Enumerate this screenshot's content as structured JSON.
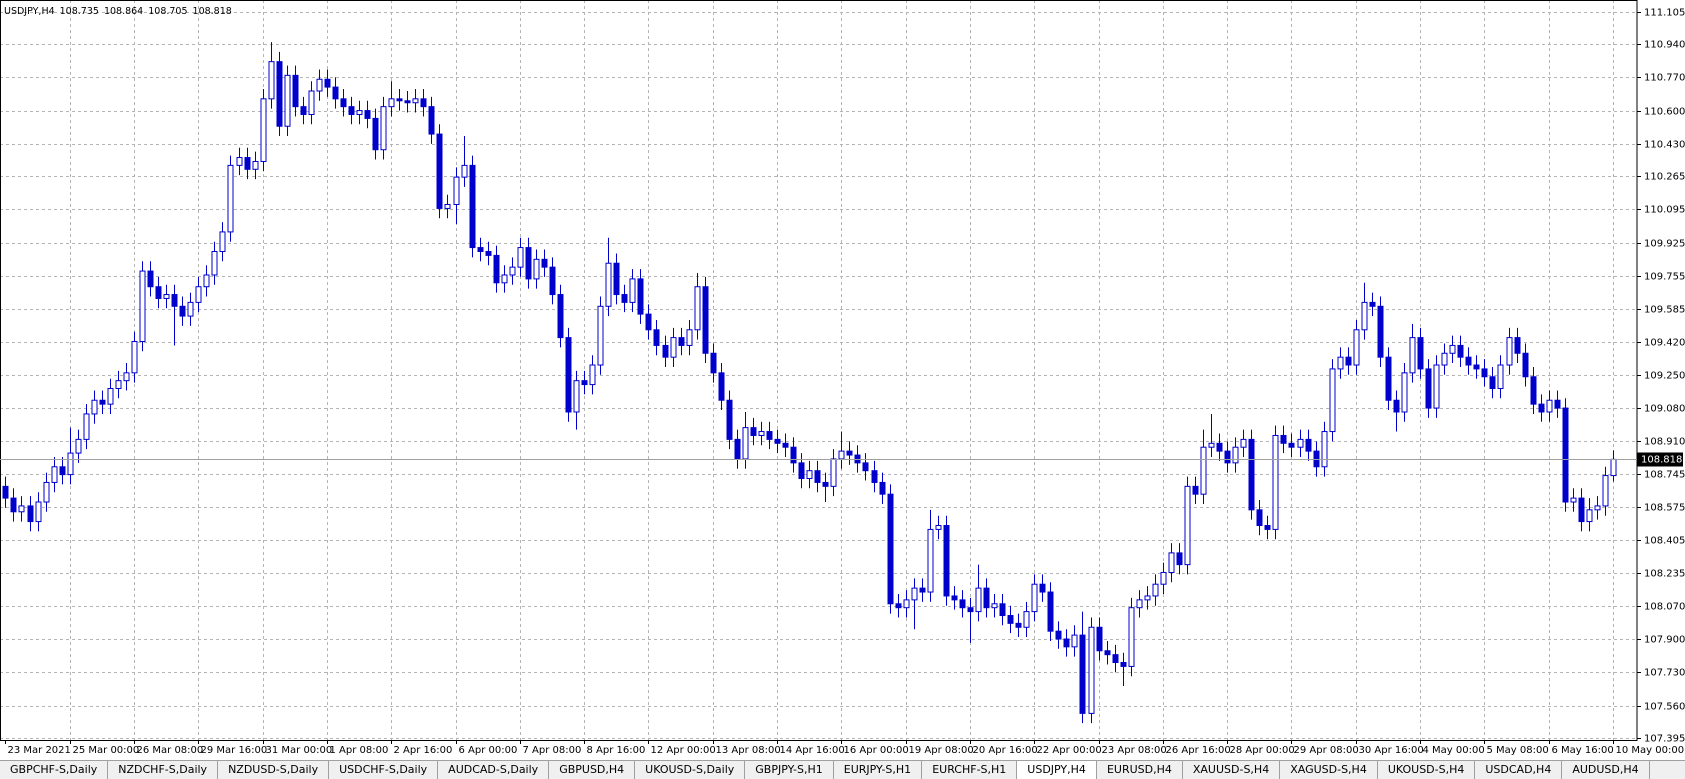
{
  "chart_data": {
    "type": "candlestick",
    "symbol": "USDJPY,H4",
    "color": "#0000cd",
    "bull_fill": "#ffffff",
    "grid": true,
    "grid_color": "#b4b4b4",
    "ylim": [
      107.384,
      111.165
    ],
    "yticks": [
      111.105,
      {
        "value": 110.94,
        "label": "110.940"
      },
      {
        "value": 110.77,
        "label": "110.770"
      },
      {
        "value": 110.6,
        "label": "110.600"
      },
      {
        "value": 110.43,
        "label": "110.430"
      },
      110.265,
      110.095,
      109.925,
      109.755,
      109.585,
      {
        "value": 109.42,
        "label": "109.420"
      },
      {
        "value": 109.25,
        "label": "109.250"
      },
      {
        "value": 109.08,
        "label": "109.080"
      },
      {
        "value": 108.91,
        "label": "108.910"
      },
      108.745,
      108.575,
      108.405,
      108.235,
      {
        "value": 108.07,
        "label": "108.070"
      },
      {
        "value": 107.9,
        "label": "107.900"
      },
      {
        "value": 107.73,
        "label": "107.730"
      },
      {
        "value": 107.56,
        "label": "107.560"
      },
      107.395
    ],
    "categories": [
      "23 Mar 2021",
      null,
      null,
      null,
      null,
      null,
      null,
      null,
      "25 Mar 00:00",
      null,
      null,
      null,
      null,
      null,
      null,
      null,
      "26 Mar 08:00",
      null,
      null,
      null,
      null,
      null,
      null,
      null,
      "29 Mar 16:00",
      null,
      null,
      null,
      null,
      null,
      null,
      null,
      "31 Mar 00:00",
      null,
      null,
      null,
      null,
      null,
      null,
      null,
      "1 Apr 08:00",
      null,
      null,
      null,
      null,
      null,
      null,
      null,
      "2 Apr 16:00",
      null,
      null,
      null,
      null,
      null,
      null,
      null,
      "6 Apr 00:00",
      null,
      null,
      null,
      null,
      null,
      null,
      null,
      "7 Apr 08:00",
      null,
      null,
      null,
      null,
      null,
      null,
      null,
      "8 Apr 16:00",
      null,
      null,
      null,
      null,
      null,
      null,
      null,
      "12 Apr 00:00",
      null,
      null,
      null,
      null,
      null,
      null,
      null,
      "13 Apr 08:00",
      null,
      null,
      null,
      null,
      null,
      null,
      null,
      "14 Apr 16:00",
      null,
      null,
      null,
      null,
      null,
      null,
      null,
      "16 Apr 00:00",
      null,
      null,
      null,
      null,
      null,
      null,
      null,
      "19 Apr 08:00",
      null,
      null,
      null,
      null,
      null,
      null,
      null,
      "20 Apr 16:00",
      null,
      null,
      null,
      null,
      null,
      null,
      null,
      "22 Apr 00:00",
      null,
      null,
      null,
      null,
      null,
      null,
      null,
      "23 Apr 08:00",
      null,
      null,
      null,
      null,
      null,
      null,
      null,
      "26 Apr 16:00",
      null,
      null,
      null,
      null,
      null,
      null,
      null,
      "28 Apr 00:00",
      null,
      null,
      null,
      null,
      null,
      null,
      null,
      "29 Apr 08:00",
      null,
      null,
      null,
      null,
      null,
      null,
      null,
      "30 Apr 16:00",
      null,
      null,
      null,
      null,
      null,
      null,
      null,
      "4 May 00:00",
      null,
      null,
      null,
      null,
      null,
      null,
      null,
      "5 May 08:00",
      null,
      null,
      null,
      null,
      null,
      null,
      null,
      "6 May 16:00",
      null,
      null,
      null,
      null,
      null,
      null,
      null,
      "10 May 00:00"
    ],
    "open": [
      108.68,
      108.62,
      108.55,
      108.58,
      108.5,
      108.6,
      108.7,
      108.78,
      108.74,
      108.85,
      108.92,
      109.05,
      109.12,
      109.1,
      109.18,
      109.22,
      109.26,
      109.42,
      109.78,
      109.7,
      109.64,
      109.66,
      109.6,
      109.55,
      109.62,
      109.7,
      109.76,
      109.88,
      109.98,
      110.32,
      110.36,
      110.3,
      110.34,
      110.66,
      110.85,
      110.52,
      110.78,
      110.62,
      110.58,
      110.7,
      110.76,
      110.72,
      110.66,
      110.62,
      110.58,
      110.6,
      110.56,
      110.4,
      110.62,
      110.66,
      110.65,
      110.64,
      110.66,
      110.62,
      110.48,
      110.1,
      110.12,
      110.26,
      110.32,
      109.9,
      109.88,
      109.86,
      109.72,
      109.76,
      109.8,
      109.9,
      109.74,
      109.84,
      109.8,
      109.66,
      109.44,
      109.06,
      109.22,
      109.2,
      109.3,
      109.6,
      109.82,
      109.66,
      109.62,
      109.74,
      109.56,
      109.48,
      109.4,
      109.34,
      109.44,
      109.4,
      109.48,
      109.7,
      109.36,
      109.26,
      109.12,
      108.92,
      108.82,
      108.98,
      108.94,
      108.96,
      108.92,
      108.9,
      108.88,
      108.8,
      108.72,
      108.76,
      108.7,
      108.68,
      108.82,
      108.86,
      108.84,
      108.8,
      108.76,
      108.7,
      108.64,
      108.08,
      108.06,
      108.1,
      108.16,
      108.14,
      108.46,
      108.48,
      108.12,
      108.1,
      108.06,
      108.04,
      108.16,
      108.06,
      108.08,
      108.02,
      107.98,
      107.96,
      108.04,
      108.18,
      108.14,
      107.94,
      107.9,
      107.86,
      107.92,
      107.52,
      107.96,
      107.84,
      107.82,
      107.78,
      107.76,
      108.06,
      108.1,
      108.12,
      108.18,
      108.24,
      108.34,
      108.28,
      108.68,
      108.64,
      108.88,
      108.9,
      108.86,
      108.8,
      108.88,
      108.92,
      108.56,
      108.48,
      108.46,
      108.94,
      108.9,
      108.88,
      108.92,
      108.86,
      108.78,
      108.96,
      109.28,
      109.34,
      109.3,
      109.48,
      109.62,
      109.6,
      109.34,
      109.12,
      109.06,
      109.26,
      109.44,
      109.28,
      109.08,
      109.3,
      109.36,
      109.4,
      109.34,
      109.3,
      109.28,
      109.24,
      109.18,
      109.3,
      109.44,
      109.36,
      109.24,
      109.1,
      109.06,
      109.12,
      109.08,
      108.6,
      108.62,
      108.5,
      108.56,
      108.58,
      108.735
    ],
    "high": [
      108.73,
      108.67,
      108.63,
      108.63,
      108.65,
      108.75,
      108.83,
      108.83,
      108.98,
      108.97,
      109.1,
      109.17,
      109.17,
      109.23,
      109.27,
      109.31,
      109.47,
      109.83,
      109.83,
      109.75,
      109.71,
      109.71,
      109.65,
      109.67,
      109.75,
      109.81,
      109.93,
      110.03,
      110.37,
      110.41,
      110.41,
      110.39,
      110.71,
      110.95,
      110.9,
      110.83,
      110.83,
      110.67,
      110.75,
      110.81,
      110.81,
      110.77,
      110.71,
      110.67,
      110.65,
      110.65,
      110.61,
      110.67,
      110.75,
      110.71,
      110.7,
      110.71,
      110.71,
      110.67,
      110.53,
      110.17,
      110.31,
      110.47,
      110.37,
      109.95,
      109.93,
      109.91,
      109.81,
      109.85,
      109.95,
      109.95,
      109.89,
      109.89,
      109.85,
      109.71,
      109.49,
      109.27,
      109.27,
      109.35,
      109.65,
      109.95,
      109.87,
      109.71,
      109.79,
      109.79,
      109.61,
      109.53,
      109.45,
      109.49,
      109.49,
      109.53,
      109.77,
      109.75,
      109.41,
      109.31,
      109.17,
      108.97,
      109.06,
      109.03,
      109.01,
      109.01,
      108.97,
      108.95,
      108.93,
      108.85,
      108.81,
      108.81,
      108.75,
      108.87,
      108.96,
      108.91,
      108.89,
      108.85,
      108.81,
      108.75,
      108.69,
      108.13,
      108.15,
      108.21,
      108.21,
      108.56,
      108.53,
      108.53,
      108.17,
      108.15,
      108.11,
      108.28,
      108.21,
      108.13,
      108.13,
      108.07,
      108.03,
      108.09,
      108.23,
      108.23,
      108.19,
      107.99,
      107.95,
      107.97,
      108.04,
      108.01,
      108.01,
      107.89,
      107.87,
      107.83,
      108.11,
      108.15,
      108.17,
      108.23,
      108.29,
      108.39,
      108.39,
      108.73,
      108.73,
      108.97,
      109.05,
      108.95,
      108.91,
      108.93,
      108.97,
      108.97,
      108.61,
      108.53,
      108.99,
      108.99,
      108.95,
      108.97,
      108.97,
      108.91,
      109.01,
      109.33,
      109.39,
      109.39,
      109.53,
      109.72,
      109.67,
      109.65,
      109.39,
      109.17,
      109.31,
      109.51,
      109.49,
      109.33,
      109.35,
      109.41,
      109.45,
      109.45,
      109.39,
      109.35,
      109.33,
      109.29,
      109.35,
      109.49,
      109.49,
      109.41,
      109.29,
      109.15,
      109.17,
      109.17,
      109.13,
      108.67,
      108.67,
      108.62,
      108.63,
      108.78,
      108.864
    ],
    "low": [
      108.57,
      108.5,
      108.5,
      108.45,
      108.45,
      108.55,
      108.65,
      108.69,
      108.69,
      108.8,
      108.87,
      109.0,
      109.05,
      109.05,
      109.13,
      109.17,
      109.21,
      109.37,
      109.65,
      109.59,
      109.59,
      109.4,
      109.5,
      109.5,
      109.57,
      109.65,
      109.71,
      109.83,
      109.93,
      110.27,
      110.25,
      110.25,
      110.29,
      110.61,
      110.47,
      110.47,
      110.57,
      110.53,
      110.53,
      110.65,
      110.67,
      110.61,
      110.57,
      110.53,
      110.53,
      110.51,
      110.35,
      110.35,
      110.57,
      110.6,
      110.59,
      110.59,
      110.57,
      110.43,
      110.05,
      110.05,
      110.02,
      110.21,
      109.85,
      109.83,
      109.81,
      109.67,
      109.67,
      109.71,
      109.75,
      109.69,
      109.69,
      109.75,
      109.61,
      109.39,
      109.01,
      108.97,
      109.15,
      109.15,
      109.25,
      109.55,
      109.61,
      109.57,
      109.57,
      109.51,
      109.43,
      109.35,
      109.29,
      109.29,
      109.35,
      109.35,
      109.43,
      109.31,
      109.21,
      109.07,
      108.87,
      108.77,
      108.77,
      108.89,
      108.89,
      108.87,
      108.85,
      108.83,
      108.75,
      108.67,
      108.67,
      108.65,
      108.6,
      108.63,
      108.77,
      108.79,
      108.75,
      108.71,
      108.65,
      108.59,
      108.03,
      108.01,
      108.01,
      107.95,
      108.09,
      108.09,
      108.41,
      108.07,
      108.05,
      108.01,
      107.88,
      107.99,
      108.01,
      108.01,
      107.97,
      107.93,
      107.91,
      107.91,
      107.99,
      108.09,
      107.89,
      107.85,
      107.81,
      107.81,
      107.47,
      107.47,
      107.79,
      107.77,
      107.73,
      107.66,
      107.71,
      108.01,
      108.05,
      108.07,
      108.13,
      108.19,
      108.23,
      108.23,
      108.59,
      108.59,
      108.83,
      108.81,
      108.75,
      108.75,
      108.83,
      108.51,
      108.43,
      108.41,
      108.41,
      108.85,
      108.83,
      108.83,
      108.81,
      108.73,
      108.73,
      108.91,
      109.23,
      109.25,
      109.25,
      109.43,
      109.55,
      109.29,
      109.07,
      108.96,
      109.01,
      109.21,
      109.23,
      109.03,
      109.03,
      109.25,
      109.31,
      109.29,
      109.25,
      109.23,
      109.19,
      109.13,
      109.13,
      109.25,
      109.31,
      109.19,
      109.05,
      109.01,
      109.01,
      109.03,
      108.55,
      108.55,
      108.45,
      108.45,
      108.51,
      108.53,
      108.705
    ],
    "close": [
      108.62,
      108.55,
      108.58,
      108.5,
      108.6,
      108.7,
      108.78,
      108.74,
      108.85,
      108.92,
      109.05,
      109.12,
      109.1,
      109.18,
      109.22,
      109.26,
      109.42,
      109.78,
      109.7,
      109.64,
      109.66,
      109.6,
      109.55,
      109.62,
      109.7,
      109.76,
      109.88,
      109.98,
      110.32,
      110.36,
      110.3,
      110.34,
      110.66,
      110.85,
      110.52,
      110.78,
      110.62,
      110.58,
      110.7,
      110.76,
      110.72,
      110.66,
      110.62,
      110.58,
      110.6,
      110.56,
      110.4,
      110.62,
      110.66,
      110.65,
      110.64,
      110.66,
      110.62,
      110.48,
      110.1,
      110.12,
      110.26,
      110.32,
      109.9,
      109.88,
      109.86,
      109.72,
      109.76,
      109.8,
      109.9,
      109.74,
      109.84,
      109.8,
      109.66,
      109.44,
      109.06,
      109.22,
      109.2,
      109.3,
      109.6,
      109.82,
      109.66,
      109.62,
      109.74,
      109.56,
      109.48,
      109.4,
      109.34,
      109.44,
      109.4,
      109.48,
      109.7,
      109.36,
      109.26,
      109.12,
      108.92,
      108.82,
      108.98,
      108.94,
      108.96,
      108.92,
      108.9,
      108.88,
      108.8,
      108.72,
      108.76,
      108.7,
      108.68,
      108.82,
      108.86,
      108.84,
      108.8,
      108.76,
      108.7,
      108.64,
      108.08,
      108.06,
      108.1,
      108.16,
      108.14,
      108.46,
      108.48,
      108.12,
      108.1,
      108.06,
      108.04,
      108.16,
      108.06,
      108.08,
      108.02,
      107.98,
      107.96,
      108.04,
      108.18,
      108.14,
      107.94,
      107.9,
      107.86,
      107.92,
      107.52,
      107.96,
      107.84,
      107.82,
      107.78,
      107.76,
      108.06,
      108.1,
      108.12,
      108.18,
      108.24,
      108.34,
      108.28,
      108.68,
      108.64,
      108.88,
      108.9,
      108.86,
      108.8,
      108.88,
      108.92,
      108.56,
      108.48,
      108.46,
      108.94,
      108.9,
      108.88,
      108.92,
      108.86,
      108.78,
      108.96,
      109.28,
      109.34,
      109.3,
      109.48,
      109.62,
      109.6,
      109.34,
      109.12,
      109.06,
      109.26,
      109.44,
      109.28,
      109.08,
      109.3,
      109.36,
      109.4,
      109.34,
      109.3,
      109.28,
      109.24,
      109.18,
      109.3,
      109.44,
      109.36,
      109.24,
      109.1,
      109.06,
      109.12,
      109.08,
      108.6,
      108.62,
      108.5,
      108.56,
      108.58,
      108.735,
      108.818
    ]
  },
  "tabs": [
    "GBPCHF-S,Daily",
    "NZDCHF-S,Daily",
    "NZDUSD-S,Daily",
    "USDCHF-S,Daily",
    "AUDCAD-S,Daily",
    "GBPUSD,H4",
    "UKOUSD-S,Daily",
    "GBPJPY-S,H1",
    "EURJPY-S,H1",
    "EURCHF-S,H1",
    "USDJPY,H4",
    "EURUSD,H4",
    "XAUUSD-S,H4",
    "XAGUSD-S,H4",
    "UKOUSD-S,H4",
    "USDCAD,H4",
    "AUDUSD,H4"
  ],
  "active_tab": 10
}
